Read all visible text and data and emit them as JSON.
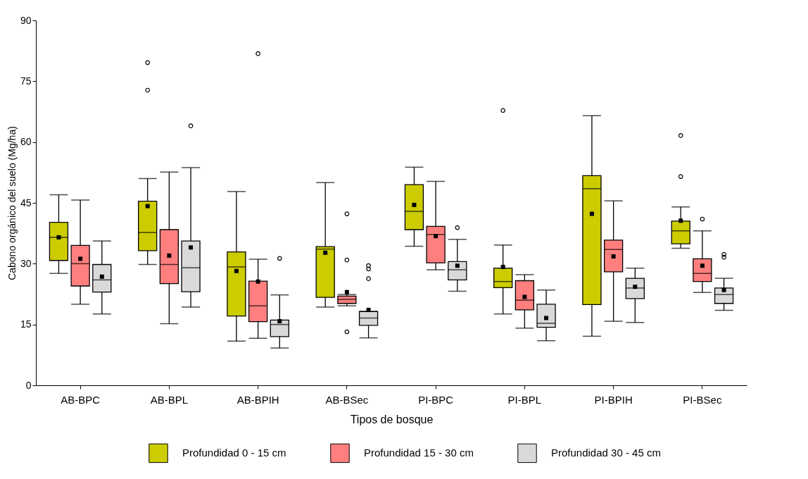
{
  "chart_data": {
    "type": "box",
    "xlabel": "Tipos de bosque",
    "ylabel": "Cabono orgánico del suelo (Mg/ha)",
    "categories": [
      "AB-BPC",
      "AB-BPL",
      "AB-BPIH",
      "AB-BSec",
      "PI-BPC",
      "PI-BPL",
      "PI-BPIH",
      "PI-BSec"
    ],
    "ylim": [
      0,
      90
    ],
    "yticks": [
      0,
      15,
      30,
      45,
      60,
      75,
      90
    ],
    "legend": "bottom",
    "series": [
      {
        "name": "Profundidad 0 - 15 cm",
        "color": "#cccc00",
        "boxes": [
          {
            "low": 27.6,
            "q1": 30.8,
            "median": 36.5,
            "q3": 40.2,
            "high": 47,
            "mean": 36.5
          },
          {
            "low": 29.8,
            "q1": 33.2,
            "median": 37.7,
            "q3": 45.4,
            "high": 51,
            "mean": 44.2,
            "outliers": [
              79.6,
              72.8
            ]
          },
          {
            "low": 10.9,
            "q1": 17.1,
            "median": 29.2,
            "q3": 32.9,
            "high": 47.8,
            "mean": 28.2
          },
          {
            "low": 19.3,
            "q1": 21.7,
            "median": 33.6,
            "q3": 34.2,
            "high": 50,
            "mean": 32.7
          },
          {
            "low": 34.3,
            "q1": 38.4,
            "median": 42.9,
            "q3": 49.5,
            "high": 53.8,
            "mean": 44.5
          },
          {
            "low": 17.6,
            "q1": 24.1,
            "median": 25.6,
            "q3": 28.9,
            "high": 34.6,
            "mean": 29.2,
            "outliers": [
              67.8
            ]
          },
          {
            "low": 12.1,
            "q1": 19.9,
            "median": 48.5,
            "q3": 51.7,
            "high": 66.5,
            "mean": 42.3
          },
          {
            "low": 33.8,
            "q1": 34.9,
            "median": 38.1,
            "q3": 40.5,
            "high": 44,
            "mean": 40.6,
            "outliers": [
              61.6,
              51.5
            ]
          }
        ]
      },
      {
        "name": "Profundidad 15 - 30 cm",
        "color": "#ff7f7f",
        "boxes": [
          {
            "low": 20,
            "q1": 24.5,
            "median": 30,
            "q3": 34.5,
            "high": 45.7,
            "mean": 31.2
          },
          {
            "low": 15.2,
            "q1": 25.1,
            "median": 29.8,
            "q3": 38.4,
            "high": 52.6,
            "mean": 32
          },
          {
            "low": 11.6,
            "q1": 15.7,
            "median": 19.6,
            "q3": 25.7,
            "high": 31.1,
            "mean": 25.6,
            "outliers": [
              81.8
            ]
          },
          {
            "low": 19.6,
            "q1": 20.2,
            "median": 21.2,
            "q3": 22,
            "high": 22.4,
            "mean": 23,
            "outliers": [
              42.3,
              30.9,
              13.2
            ]
          },
          {
            "low": 28.5,
            "q1": 30.2,
            "median": 37.2,
            "q3": 39.2,
            "high": 50.3,
            "mean": 36.8
          },
          {
            "low": 14.1,
            "q1": 18.6,
            "median": 21,
            "q3": 25.8,
            "high": 27.3,
            "mean": 21.8
          },
          {
            "low": 15.8,
            "q1": 28,
            "median": 33.5,
            "q3": 35.8,
            "high": 45.5,
            "mean": 31.8
          },
          {
            "low": 22.9,
            "q1": 25.6,
            "median": 27.6,
            "q3": 31.2,
            "high": 38.1,
            "mean": 29.5,
            "outliers": [
              41
            ]
          }
        ]
      },
      {
        "name": "Profundidad 30 - 45 cm",
        "color": "#d9d9d9",
        "boxes": [
          {
            "low": 17.6,
            "q1": 23,
            "median": 26,
            "q3": 29.8,
            "high": 35.6,
            "mean": 26.8
          },
          {
            "low": 19.3,
            "q1": 23.1,
            "median": 29,
            "q3": 35.6,
            "high": 53.7,
            "mean": 34,
            "outliers": [
              64
            ]
          },
          {
            "low": 9.2,
            "q1": 12,
            "median": 15,
            "q3": 16.1,
            "high": 22.3,
            "mean": 15.8,
            "outliers": [
              31.3
            ]
          },
          {
            "low": 11.7,
            "q1": 14.8,
            "median": 16.6,
            "q3": 18.2,
            "high": 18.2,
            "mean": 18.6,
            "outliers": [
              29.5,
              28.7,
              26.3
            ]
          },
          {
            "low": 23.2,
            "q1": 26,
            "median": 28.5,
            "q3": 30.5,
            "high": 36,
            "mean": 29.5,
            "outliers": [
              38.9
            ]
          },
          {
            "low": 11,
            "q1": 14.3,
            "median": 15.3,
            "q3": 20,
            "high": 23.5,
            "mean": 16.6
          },
          {
            "low": 15.5,
            "q1": 21.4,
            "median": 24,
            "q3": 26.4,
            "high": 28.9,
            "mean": 24.3
          },
          {
            "low": 18.5,
            "q1": 20.2,
            "median": 22.4,
            "q3": 24,
            "high": 26.4,
            "mean": 23.5,
            "outliers": [
              32.3,
              31.6
            ]
          }
        ]
      }
    ]
  }
}
